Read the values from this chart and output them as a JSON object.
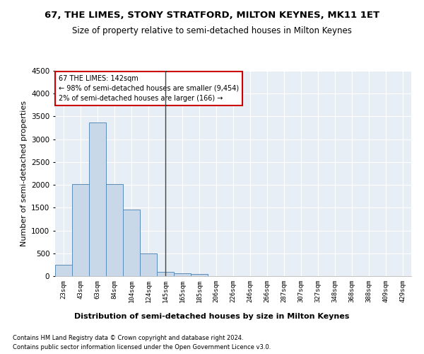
{
  "title": "67, THE LIMES, STONY STRATFORD, MILTON KEYNES, MK11 1ET",
  "subtitle": "Size of property relative to semi-detached houses in Milton Keynes",
  "xlabel": "Distribution of semi-detached houses by size in Milton Keynes",
  "ylabel": "Number of semi-detached properties",
  "footer_line1": "Contains HM Land Registry data © Crown copyright and database right 2024.",
  "footer_line2": "Contains public sector information licensed under the Open Government Licence v3.0.",
  "annotation_title": "67 THE LIMES: 142sqm",
  "annotation_line2": "← 98% of semi-detached houses are smaller (9,454)",
  "annotation_line3": "2% of semi-detached houses are larger (166) →",
  "bar_categories": [
    "23sqm",
    "43sqm",
    "63sqm",
    "84sqm",
    "104sqm",
    "124sqm",
    "145sqm",
    "165sqm",
    "185sqm",
    "206sqm",
    "226sqm",
    "246sqm",
    "266sqm",
    "287sqm",
    "307sqm",
    "327sqm",
    "348sqm",
    "368sqm",
    "388sqm",
    "409sqm",
    "429sqm"
  ],
  "bar_values": [
    250,
    2020,
    3370,
    2010,
    1460,
    490,
    100,
    60,
    45,
    0,
    0,
    0,
    0,
    0,
    0,
    0,
    0,
    0,
    0,
    0,
    0
  ],
  "bar_color": "#c8d8e8",
  "bar_edge_color": "#5b8db8",
  "background_color": "#e8eef5",
  "ylim": [
    0,
    4500
  ],
  "yticks": [
    0,
    500,
    1000,
    1500,
    2000,
    2500,
    3000,
    3500,
    4000,
    4500
  ],
  "annotation_box_color": "#ffffff",
  "annotation_box_edge": "#cc0000",
  "title_fontsize": 9.5,
  "subtitle_fontsize": 8.5,
  "xlabel_fontsize": 8,
  "ylabel_fontsize": 8,
  "property_line_x": 6.0
}
